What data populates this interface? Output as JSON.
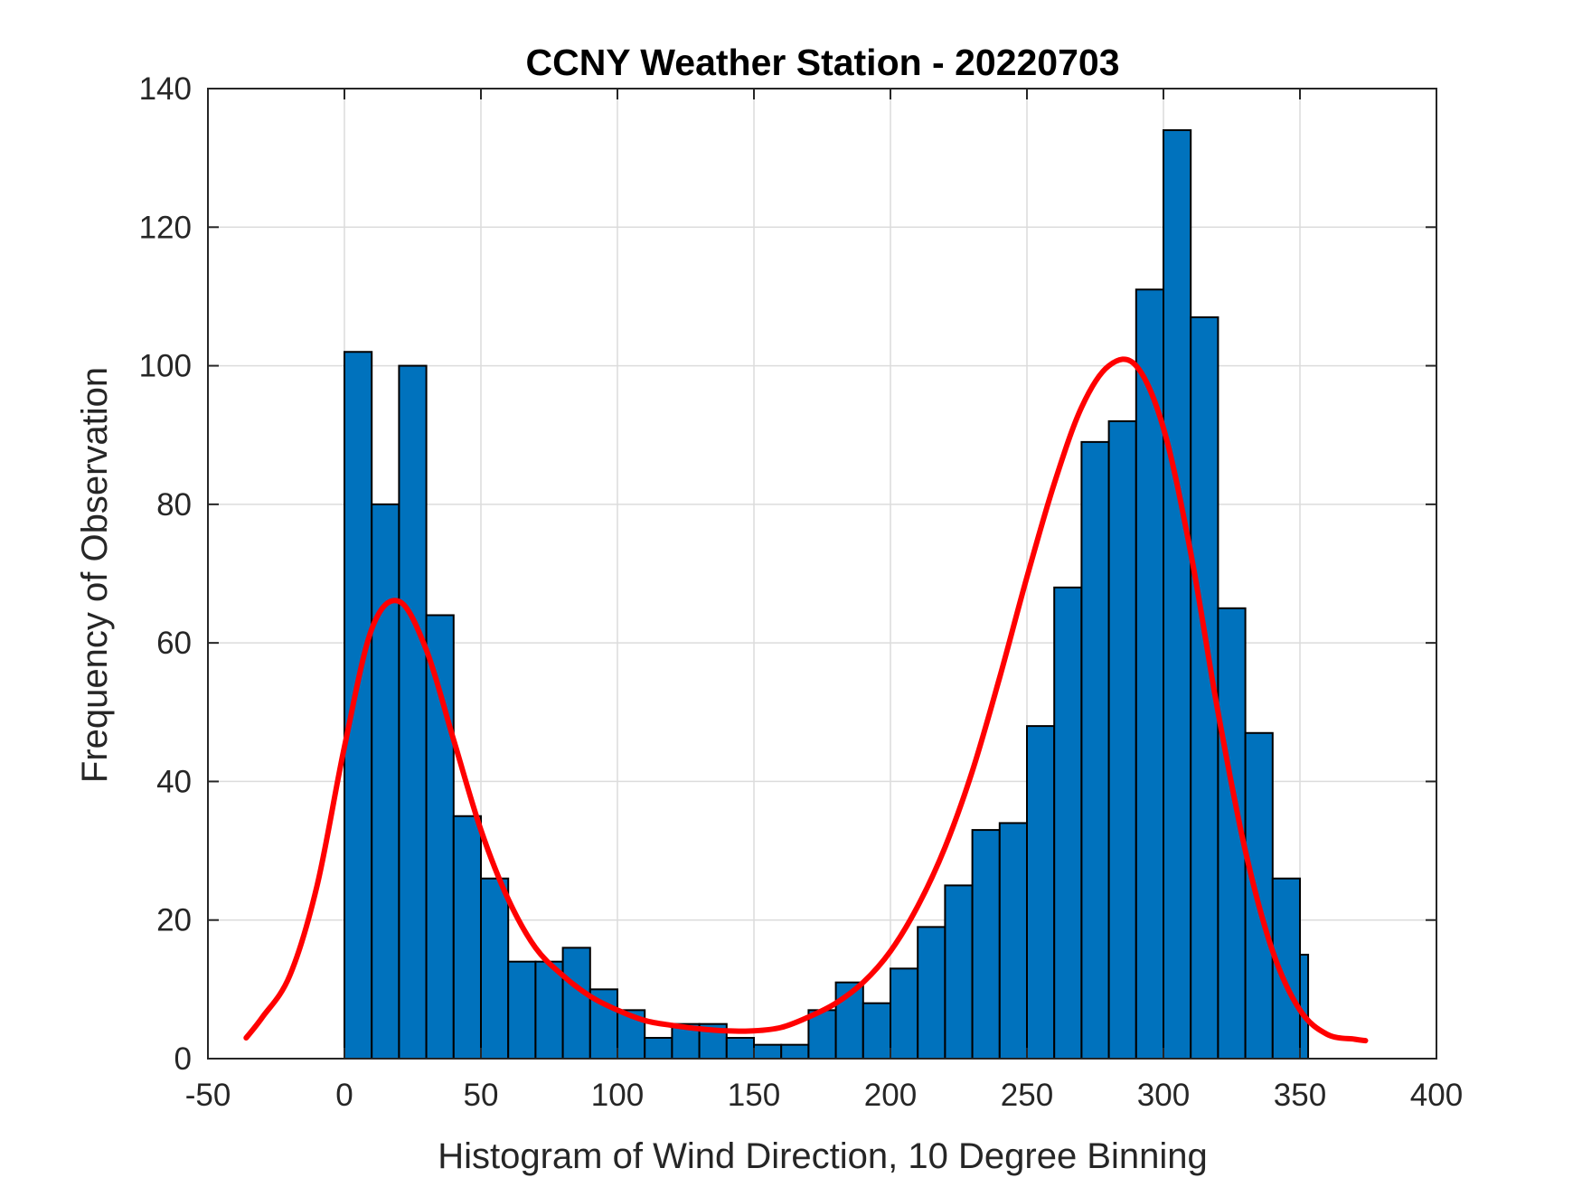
{
  "chart_data": {
    "type": "bar",
    "title": "CCNY Weather Station - 20220703",
    "xlabel": "Histogram of Wind Direction, 10 Degree Binning",
    "ylabel": "Frequency of Observation",
    "xlim": [
      -50,
      400
    ],
    "ylim": [
      0,
      140
    ],
    "xticks": [
      -50,
      0,
      50,
      100,
      150,
      200,
      250,
      300,
      350,
      400
    ],
    "yticks": [
      0,
      20,
      40,
      60,
      80,
      100,
      120,
      140
    ],
    "grid": true,
    "bin_width": 10,
    "bin_edges": [
      0,
      10,
      20,
      30,
      40,
      50,
      60,
      70,
      80,
      90,
      100,
      110,
      120,
      130,
      140,
      150,
      160,
      170,
      180,
      190,
      200,
      210,
      220,
      230,
      240,
      250,
      260,
      270,
      280,
      290,
      300,
      310,
      320,
      330,
      340,
      350,
      353
    ],
    "counts": [
      102,
      80,
      100,
      64,
      35,
      26,
      14,
      14,
      16,
      10,
      7,
      3,
      5,
      5,
      3,
      2,
      2,
      7,
      11,
      8,
      13,
      19,
      25,
      33,
      34,
      48,
      68,
      89,
      92,
      111,
      134,
      107,
      65,
      47,
      26,
      15
    ],
    "bar_color": "#0072BD",
    "fit_curve": {
      "color": "#FF0000",
      "x": [
        -36,
        -30,
        -20,
        -10,
        0,
        10,
        20,
        30,
        40,
        50,
        60,
        70,
        80,
        90,
        100,
        110,
        120,
        130,
        140,
        150,
        160,
        170,
        180,
        190,
        200,
        210,
        220,
        230,
        240,
        250,
        260,
        270,
        280,
        290,
        300,
        310,
        320,
        330,
        340,
        350,
        360,
        370,
        374
      ],
      "y": [
        3,
        6,
        12,
        25,
        45,
        62,
        66,
        59,
        46,
        33,
        23,
        16,
        12,
        9,
        7,
        5.5,
        4.8,
        4.3,
        4,
        4,
        4.5,
        6,
        8,
        11,
        15.5,
        22,
        30.5,
        41.5,
        55,
        69.5,
        83,
        94,
        100,
        100,
        91,
        73,
        50,
        30,
        15.5,
        7,
        3.5,
        2.8,
        2.6
      ]
    }
  }
}
